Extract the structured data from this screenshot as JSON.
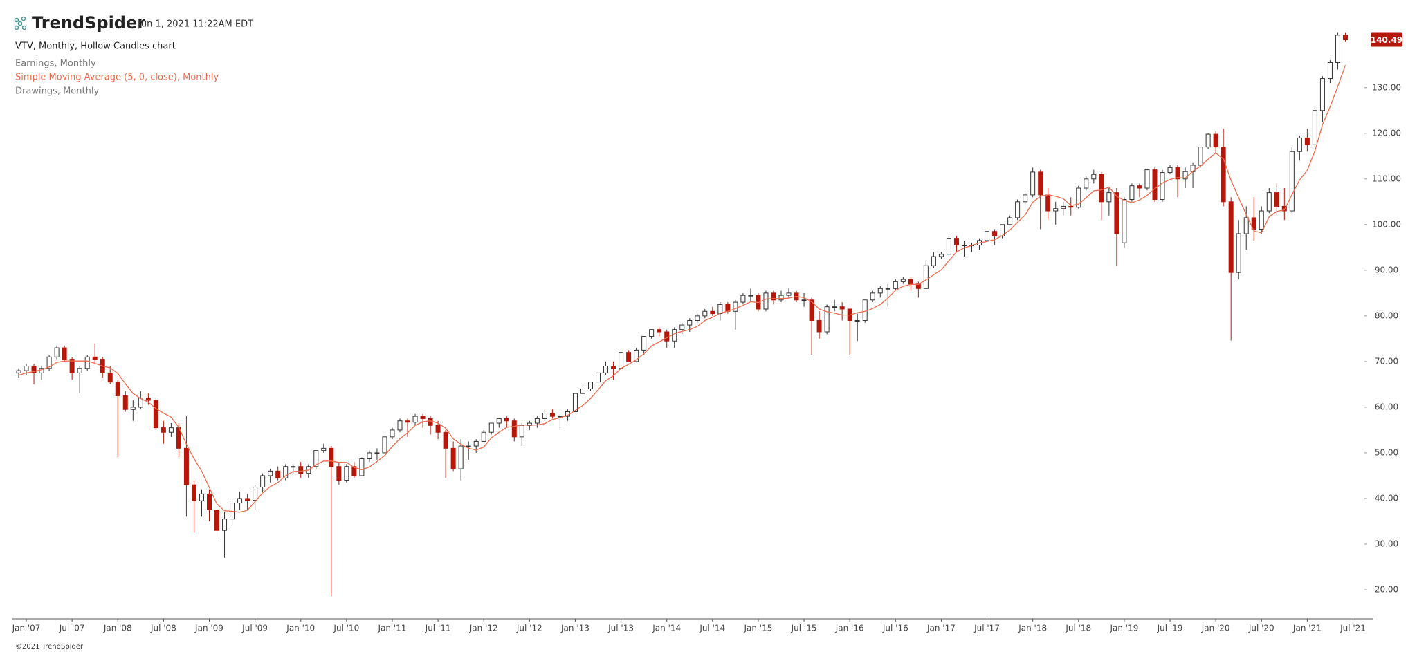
{
  "header": {
    "brand": "TrendSpider",
    "timestamp": "Jun 1, 2021 11:22AM EDT"
  },
  "footer": "©2021 TrendSpider",
  "chart_data": {
    "type": "candlestick",
    "title": "VTV, Monthly, Hollow Candles chart",
    "up_color": "#333333",
    "down_color": "#b5170b",
    "ylim": [
      13.64,
      149.2
    ],
    "yticks": [
      {
        "value": 20,
        "label": "20.00"
      },
      {
        "value": 30,
        "label": "30.00"
      },
      {
        "value": 40,
        "label": "40.00"
      },
      {
        "value": 50,
        "label": "50.00"
      },
      {
        "value": 60,
        "label": "60.00"
      },
      {
        "value": 70,
        "label": "70.00"
      },
      {
        "value": 80,
        "label": "80.00"
      },
      {
        "value": 90,
        "label": "90.00"
      },
      {
        "value": 100,
        "label": "100.00"
      },
      {
        "value": 110,
        "label": "110.00"
      },
      {
        "value": 120,
        "label": "120.00"
      },
      {
        "value": 130,
        "label": "130.00"
      }
    ],
    "categories": [
      null,
      "Jan '07",
      null,
      null,
      null,
      null,
      null,
      "Jul '07",
      null,
      null,
      null,
      null,
      null,
      "Jan '08",
      null,
      null,
      null,
      null,
      null,
      "Jul '08",
      null,
      null,
      null,
      null,
      null,
      "Jan '09",
      null,
      null,
      null,
      null,
      null,
      "Jul '09",
      null,
      null,
      null,
      null,
      null,
      "Jan '10",
      null,
      null,
      null,
      null,
      null,
      "Jul '10",
      null,
      null,
      null,
      null,
      null,
      "Jan '11",
      null,
      null,
      null,
      null,
      null,
      "Jul '11",
      null,
      null,
      null,
      null,
      null,
      "Jan '12",
      null,
      null,
      null,
      null,
      null,
      "Jul '12",
      null,
      null,
      null,
      null,
      null,
      "Jan '13",
      null,
      null,
      null,
      null,
      null,
      "Jul '13",
      null,
      null,
      null,
      null,
      null,
      "Jan '14",
      null,
      null,
      null,
      null,
      null,
      "Jul '14",
      null,
      null,
      null,
      null,
      null,
      "Jan '15",
      null,
      null,
      null,
      null,
      null,
      "Jul '15",
      null,
      null,
      null,
      null,
      null,
      "Jan '16",
      null,
      null,
      null,
      null,
      null,
      "Jul '16",
      null,
      null,
      null,
      null,
      null,
      "Jan '17",
      null,
      null,
      null,
      null,
      null,
      "Jul '17",
      null,
      null,
      null,
      null,
      null,
      "Jan '18",
      null,
      null,
      null,
      null,
      null,
      "Jul '18",
      null,
      null,
      null,
      null,
      null,
      "Jan '19",
      null,
      null,
      null,
      null,
      null,
      "Jul '19",
      null,
      null,
      null,
      null,
      null,
      "Jan '20",
      null,
      null,
      null,
      null,
      null,
      "Jul '20",
      null,
      null,
      null,
      null,
      null,
      "Jan '21",
      null,
      null,
      null,
      null,
      null,
      "Jul '21"
    ],
    "candles": [
      [
        67.5,
        68.5,
        66.5,
        68
      ],
      [
        68,
        69.5,
        67,
        69
      ],
      [
        69,
        69.5,
        65,
        67.5
      ],
      [
        67.5,
        69,
        66,
        68.5
      ],
      [
        68.5,
        71.5,
        68,
        71
      ],
      [
        71,
        73.5,
        70.5,
        73
      ],
      [
        73,
        73.5,
        70,
        70.5
      ],
      [
        70.5,
        71,
        66,
        67.5
      ],
      [
        67.5,
        69,
        63,
        68.5
      ],
      [
        68.5,
        71.5,
        68,
        71
      ],
      [
        71,
        74,
        69.5,
        70.5
      ],
      [
        70.5,
        71,
        66.5,
        67.5
      ],
      [
        67.5,
        69,
        65,
        65.5
      ],
      [
        65.5,
        66,
        49,
        62.5
      ],
      [
        62.5,
        63.5,
        59,
        59.5
      ],
      [
        59.5,
        61.5,
        57,
        60
      ],
      [
        60,
        63.5,
        59.5,
        62
      ],
      [
        62,
        63,
        60.5,
        61.5
      ],
      [
        61.5,
        62,
        55,
        55.5
      ],
      [
        55.5,
        57,
        52,
        54.5
      ],
      [
        54.5,
        56.5,
        53.5,
        55.5
      ],
      [
        55.5,
        56.5,
        49,
        51
      ],
      [
        51,
        58,
        36,
        43
      ],
      [
        43,
        44,
        32.5,
        39.5
      ],
      [
        39.5,
        42,
        36,
        41
      ],
      [
        41,
        42,
        35,
        37.5
      ],
      [
        37.5,
        38.5,
        31.5,
        33
      ],
      [
        33,
        37,
        27,
        35.5
      ],
      [
        35.5,
        40,
        34,
        39
      ],
      [
        39,
        41.5,
        37.5,
        40
      ],
      [
        40,
        41,
        37.5,
        39.6
      ],
      [
        39.6,
        43,
        37.5,
        42.5
      ],
      [
        42.5,
        45.5,
        41.5,
        45
      ],
      [
        45,
        46.5,
        43.5,
        46
      ],
      [
        46,
        47,
        44,
        44.5
      ],
      [
        44.5,
        47.5,
        44,
        47
      ],
      [
        47,
        47.5,
        45.5,
        47
      ],
      [
        47,
        48,
        44.5,
        45.5
      ],
      [
        45.5,
        47.5,
        44.5,
        47
      ],
      [
        47,
        50.5,
        46.5,
        50.5
      ],
      [
        50.5,
        52,
        50,
        51
      ],
      [
        51,
        51.5,
        18.6,
        47
      ],
      [
        47,
        48,
        43,
        44
      ],
      [
        44,
        47.5,
        43.5,
        47
      ],
      [
        47,
        48,
        44.5,
        45
      ],
      [
        45,
        49,
        45,
        48.7
      ],
      [
        48.7,
        50.5,
        48,
        50
      ],
      [
        50,
        51,
        48.5,
        50
      ],
      [
        50,
        53.5,
        50,
        53.5
      ],
      [
        53.5,
        55.5,
        53,
        55
      ],
      [
        55,
        57.5,
        54.5,
        57
      ],
      [
        57,
        57.5,
        53.5,
        56.7
      ],
      [
        56.7,
        58.5,
        56,
        58
      ],
      [
        58,
        58.5,
        55.5,
        57.5
      ],
      [
        57.5,
        58,
        54,
        56
      ],
      [
        56,
        57,
        53,
        54.5
      ],
      [
        54.5,
        55,
        44.5,
        51
      ],
      [
        51,
        52.5,
        46,
        46.5
      ],
      [
        46.5,
        53,
        44,
        51.5
      ],
      [
        51.5,
        52.5,
        48.5,
        51.5
      ],
      [
        51.5,
        53,
        50,
        52.5
      ],
      [
        52.5,
        55,
        52.5,
        54.5
      ],
      [
        54.5,
        56.5,
        54,
        56.5
      ],
      [
        56.5,
        57.5,
        55.5,
        57.5
      ],
      [
        57.5,
        58,
        55.5,
        57
      ],
      [
        57,
        57.5,
        52.5,
        53.5
      ],
      [
        53.5,
        56.5,
        51.5,
        56
      ],
      [
        56,
        57,
        55,
        56.5
      ],
      [
        56.5,
        58,
        55.5,
        57.5
      ],
      [
        57.5,
        59.5,
        57,
        58.7
      ],
      [
        58.7,
        59.5,
        57.5,
        58
      ],
      [
        58,
        58.5,
        55,
        58
      ],
      [
        58,
        59.5,
        57,
        59
      ],
      [
        59,
        63,
        59,
        63
      ],
      [
        63,
        64.5,
        62,
        64
      ],
      [
        64,
        65.5,
        63.5,
        65.5
      ],
      [
        65.5,
        67.5,
        64.5,
        67.5
      ],
      [
        67.5,
        70,
        67,
        69
      ],
      [
        69,
        70,
        66,
        68.5
      ],
      [
        68.5,
        72,
        68.5,
        72
      ],
      [
        72,
        72.5,
        70,
        70
      ],
      [
        70,
        73,
        70,
        72.5
      ],
      [
        72.5,
        75.5,
        71.5,
        75.5
      ],
      [
        75.5,
        77,
        75,
        77
      ],
      [
        77,
        77.5,
        75.5,
        76.5
      ],
      [
        76.5,
        77,
        73,
        74.5
      ],
      [
        74.5,
        77.5,
        73,
        77
      ],
      [
        77,
        78.5,
        76,
        78
      ],
      [
        78,
        79.5,
        76.5,
        79
      ],
      [
        79,
        80.5,
        78.5,
        80
      ],
      [
        80,
        81.5,
        79.5,
        81
      ],
      [
        81,
        82,
        80,
        80.5
      ],
      [
        80.5,
        83,
        79,
        82.5
      ],
      [
        82.5,
        83,
        80.5,
        81
      ],
      [
        81,
        83.5,
        77,
        83
      ],
      [
        83,
        85,
        82.5,
        84.5
      ],
      [
        84.5,
        86,
        83,
        84.5
      ],
      [
        84.5,
        85,
        81,
        81.5
      ],
      [
        81.5,
        85.5,
        81,
        85
      ],
      [
        85,
        85.5,
        82.5,
        83.5
      ],
      [
        83.5,
        85.5,
        83,
        84.5
      ],
      [
        84.5,
        86,
        84,
        85
      ],
      [
        85,
        85.5,
        83,
        83.5
      ],
      [
        83.5,
        85,
        82,
        83.5
      ],
      [
        83.5,
        84,
        71.5,
        79
      ],
      [
        79,
        81,
        75,
        76.5
      ],
      [
        76.5,
        82.5,
        76,
        82
      ],
      [
        82,
        83.5,
        81,
        82
      ],
      [
        82,
        83,
        79,
        81.5
      ],
      [
        81.5,
        81.5,
        71.5,
        79
      ],
      [
        79,
        80.5,
        74.5,
        79
      ],
      [
        79,
        83.5,
        78.5,
        83.5
      ],
      [
        83.5,
        85.5,
        83,
        85
      ],
      [
        85,
        86.5,
        84,
        86
      ],
      [
        86,
        87,
        82,
        86
      ],
      [
        86,
        88,
        85.5,
        87.5
      ],
      [
        87.5,
        88.5,
        87,
        88
      ],
      [
        88,
        88.5,
        85.5,
        87
      ],
      [
        87,
        87.5,
        84,
        86
      ],
      [
        86,
        92,
        86,
        91
      ],
      [
        91,
        94,
        90.5,
        93
      ],
      [
        93,
        94,
        92.5,
        93.5
      ],
      [
        93.5,
        97.5,
        93.5,
        97
      ],
      [
        97,
        97.5,
        94,
        95.5
      ],
      [
        95.5,
        96.5,
        93,
        95.5
      ],
      [
        95.5,
        96,
        94,
        95.5
      ],
      [
        95.5,
        97,
        94.5,
        96.5
      ],
      [
        96.5,
        98.5,
        96,
        98.5
      ],
      [
        98.5,
        99,
        95.5,
        97.5
      ],
      [
        97.5,
        100,
        97,
        100
      ],
      [
        100,
        102,
        100,
        101.5
      ],
      [
        101.5,
        105.5,
        101,
        105
      ],
      [
        105,
        107,
        104.5,
        106.5
      ],
      [
        106.5,
        112.5,
        106,
        111.5
      ],
      [
        111.5,
        112,
        99,
        106.5
      ],
      [
        106.5,
        108,
        101,
        103
      ],
      [
        103,
        105,
        100,
        103.5
      ],
      [
        103.5,
        105,
        102,
        104
      ],
      [
        104,
        106,
        102,
        103.8
      ],
      [
        103.8,
        108.5,
        103.5,
        108
      ],
      [
        108,
        110.5,
        107.5,
        110
      ],
      [
        110,
        112,
        109,
        111
      ],
      [
        111,
        111.5,
        101,
        105
      ],
      [
        105,
        108,
        102,
        107
      ],
      [
        107,
        108,
        91,
        98
      ],
      [
        96,
        106,
        95,
        105.5
      ],
      [
        105.5,
        109,
        105,
        108.5
      ],
      [
        108.5,
        109,
        106,
        108
      ],
      [
        108,
        112,
        107.5,
        112
      ],
      [
        112,
        112.5,
        105,
        105.5
      ],
      [
        105.5,
        112,
        105,
        111.4
      ],
      [
        111.4,
        113,
        111,
        112.5
      ],
      [
        112.5,
        113,
        106,
        110
      ],
      [
        110,
        112.5,
        108,
        111.6
      ],
      [
        111.6,
        113.5,
        108,
        113
      ],
      [
        113,
        117,
        112.5,
        117
      ],
      [
        117,
        120,
        116.5,
        119.8
      ],
      [
        119.8,
        120.5,
        115.5,
        117
      ],
      [
        117,
        121,
        104,
        105
      ],
      [
        105,
        106,
        74.6,
        89.5
      ],
      [
        89.5,
        101,
        88,
        98
      ],
      [
        98,
        104,
        94.5,
        101.5
      ],
      [
        101.5,
        106,
        96.5,
        99
      ],
      [
        99,
        104,
        98,
        103
      ],
      [
        103,
        108,
        102.5,
        107
      ],
      [
        107,
        109,
        102,
        104
      ],
      [
        104,
        108,
        101,
        103
      ],
      [
        103,
        117,
        102.5,
        116
      ],
      [
        116,
        119.5,
        114,
        119
      ],
      [
        119,
        121,
        116,
        117.5
      ],
      [
        117.5,
        126,
        117,
        125
      ],
      [
        125,
        132.5,
        122.5,
        132
      ],
      [
        132,
        136,
        131,
        135.5
      ],
      [
        135.5,
        142,
        134,
        141.5
      ],
      [
        141.5,
        142,
        140,
        140.49
      ],
      null
    ],
    "series": [
      {
        "name": "Earnings, Monthly",
        "color": "#777777"
      },
      {
        "name": "Simple Moving Average (5, 0, close), Monthly",
        "color": "#ee6a4d",
        "values": [
          67,
          67.5,
          67.8,
          68.2,
          68.8,
          69.8,
          70.1,
          70.1,
          70.1,
          70.1,
          69.6,
          69.0,
          68.6,
          67.4,
          65.1,
          63.0,
          61.9,
          61.1,
          59.7,
          58.7,
          57.8,
          55.6,
          51.9,
          48.7,
          46.0,
          42.4,
          38.8,
          37.3,
          37.2,
          37.0,
          37.4,
          39.3,
          41.2,
          42.6,
          43.5,
          45.0,
          45.9,
          46.0,
          46.2,
          47.4,
          48.2,
          48.2,
          47.9,
          47.9,
          46.8,
          46.3,
          46.9,
          48.1,
          49.4,
          51.4,
          53.1,
          54.4,
          56.0,
          56.8,
          57.0,
          56.5,
          55.4,
          53.1,
          51.9,
          51.0,
          50.6,
          51.3,
          53.3,
          54.5,
          55.6,
          55.8,
          56.1,
          56.1,
          56.1,
          56.4,
          57.3,
          57.7,
          58.2,
          59.3,
          60.4,
          61.9,
          63.8,
          65.8,
          66.9,
          68.5,
          69.4,
          70.4,
          71.7,
          73.4,
          74.3,
          75.2,
          76.1,
          76.6,
          77.0,
          77.7,
          79.0,
          79.7,
          80.6,
          81.0,
          81.6,
          82.3,
          83.1,
          82.9,
          83.7,
          83.8,
          83.8,
          83.9,
          84.3,
          84.0,
          83.1,
          81.5,
          80.9,
          80.6,
          80.2,
          80.2,
          80.7,
          81.0,
          81.6,
          82.5,
          83.9,
          85.6,
          86.5,
          86.9,
          86.9,
          87.9,
          89.0,
          90.1,
          92.1,
          94.0,
          94.9,
          95.4,
          96.0,
          96.3,
          96.7,
          97.6,
          98.8,
          100.5,
          102.1,
          104.9,
          106.2,
          106.5,
          106.2,
          105.7,
          104.2,
          104.5,
          105.9,
          107.4,
          107.6,
          108.2,
          106.2,
          105.3,
          104.8,
          105.4,
          106.4,
          107.9,
          109.1,
          109.9,
          110.3,
          110.2,
          111.7,
          112.8,
          114.3,
          115.7,
          114.4,
          109.7,
          105.9,
          102.2,
          98.6,
          98.2,
          101.7,
          102.9,
          103.2,
          106.6,
          109.8,
          111.9,
          116.1,
          121.9,
          125.8,
          130.3,
          134.9,
          null
        ]
      },
      {
        "name": "Drawings, Monthly",
        "color": "#777777"
      }
    ]
  }
}
